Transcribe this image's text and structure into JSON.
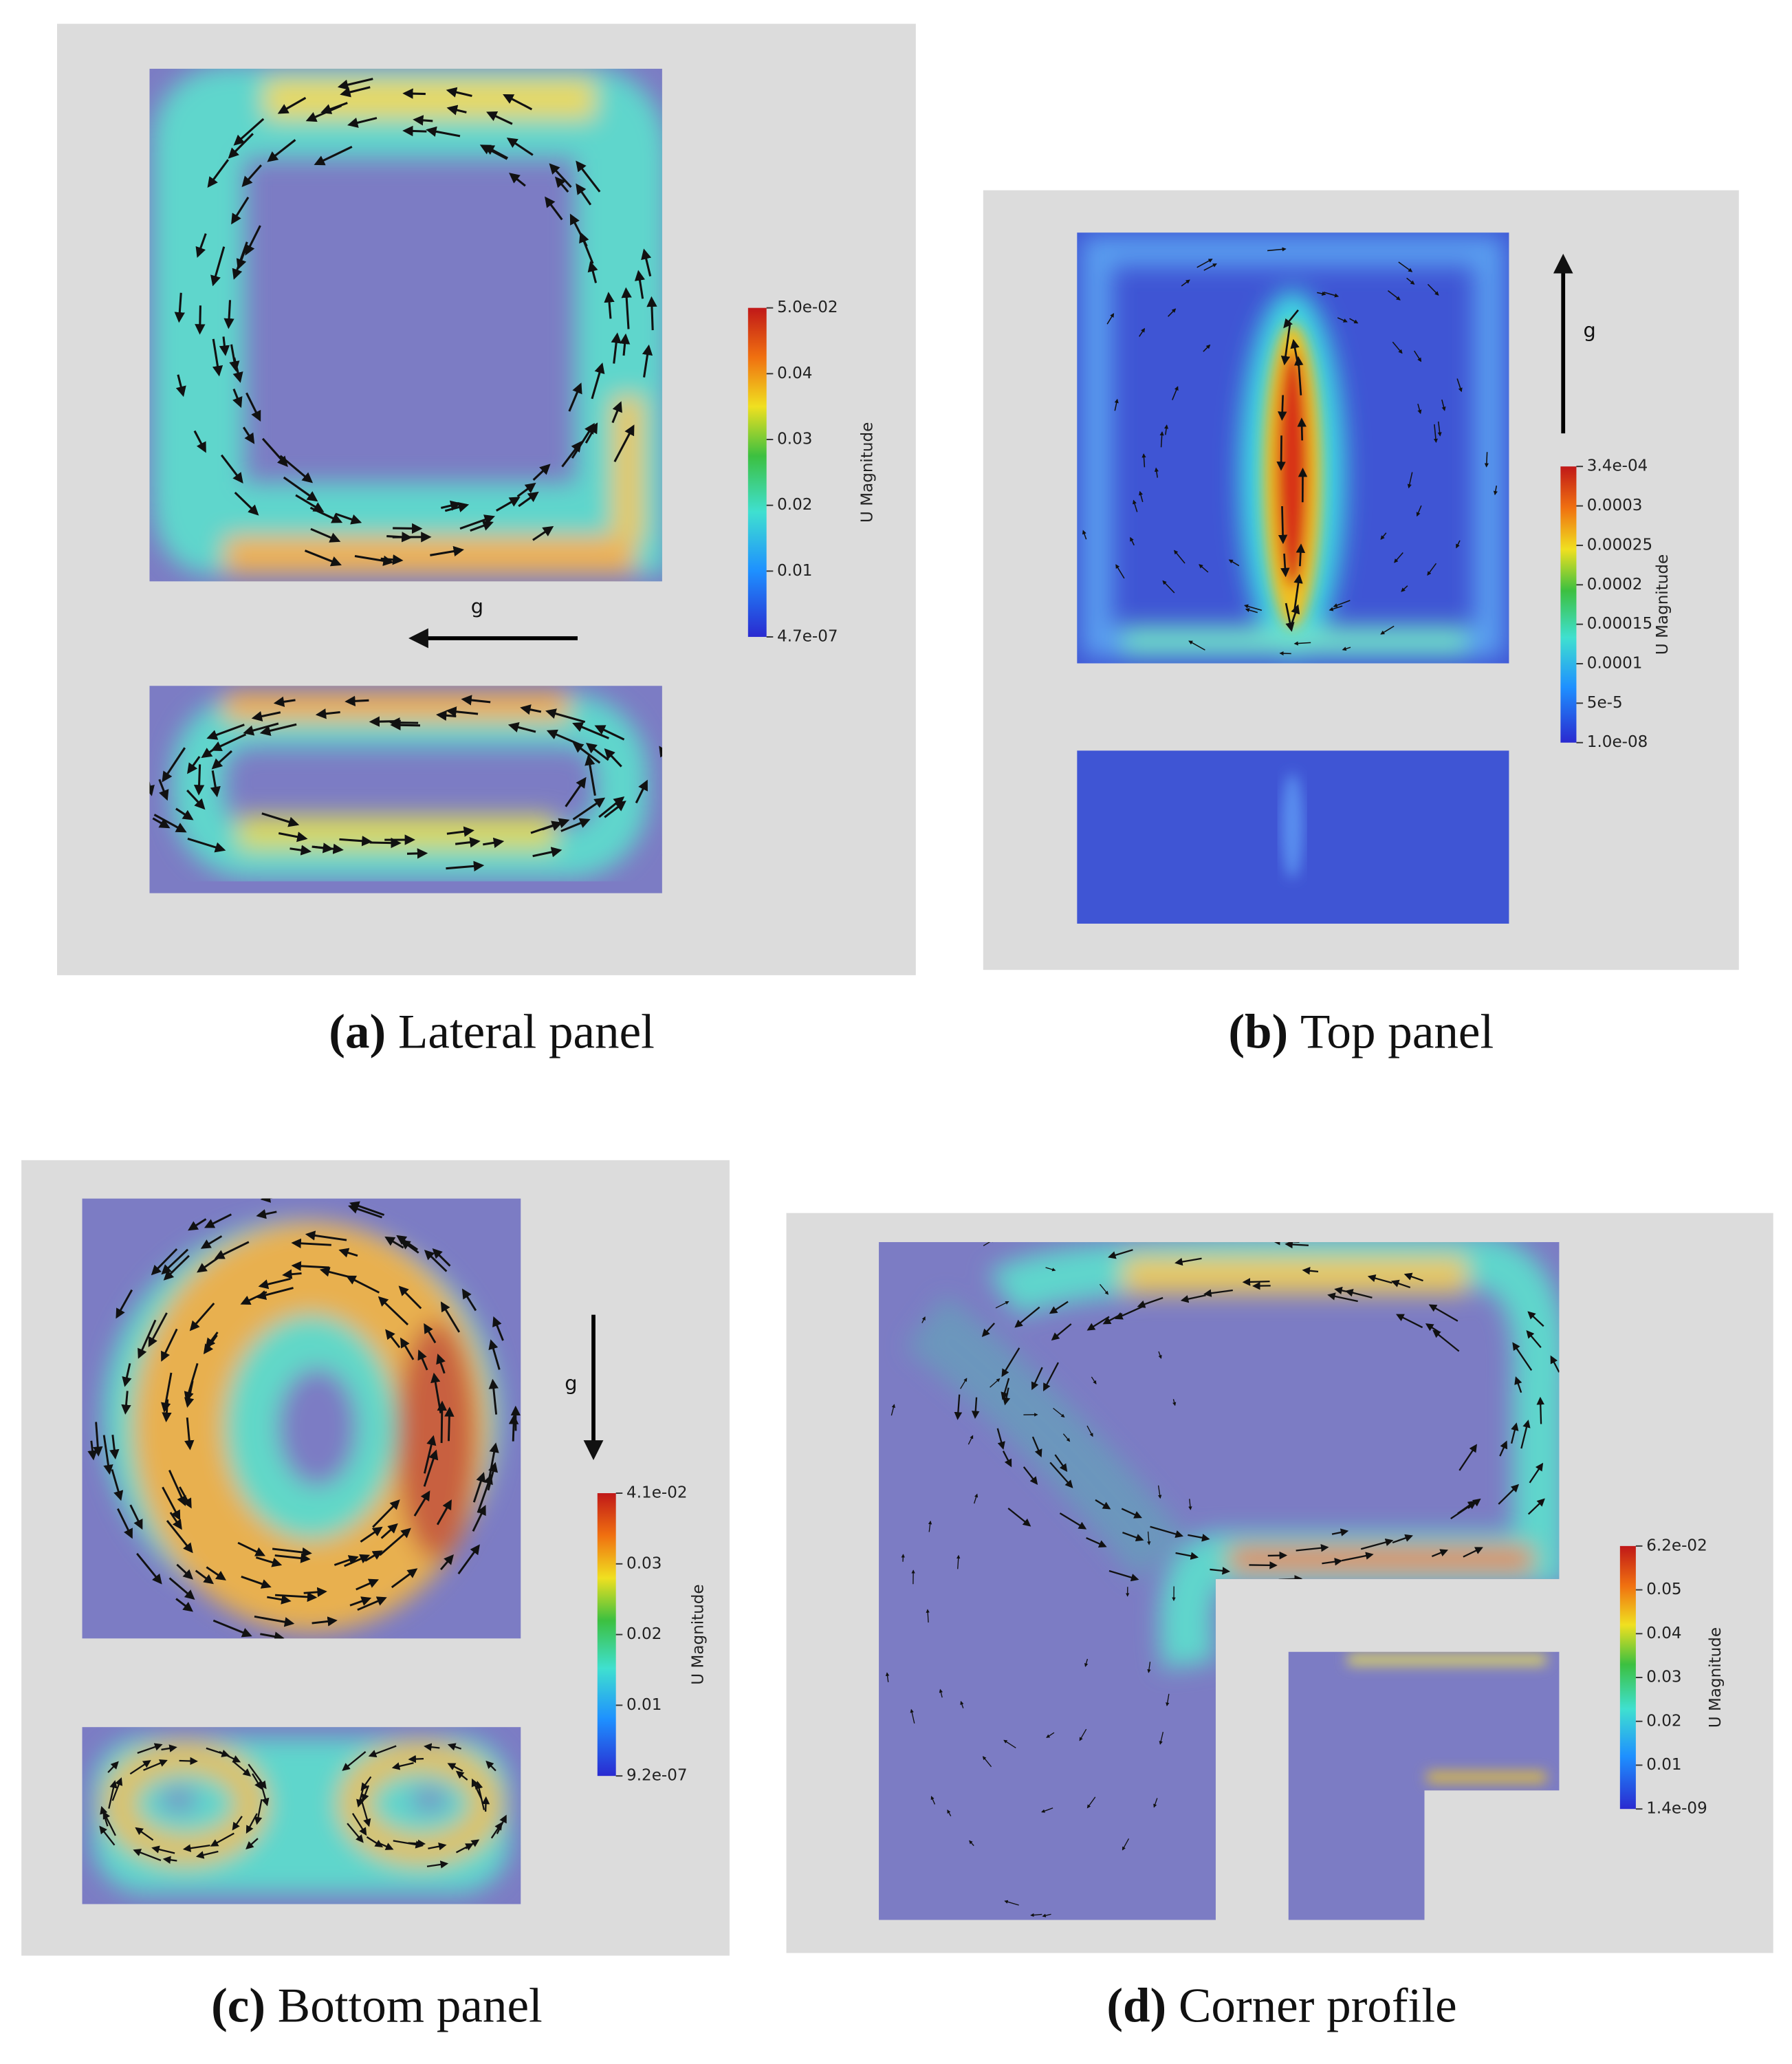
{
  "panels": [
    {
      "label": "(a)",
      "caption": "Lateral panel",
      "gravity": "g",
      "colorbar_title": "U Magnitude",
      "colorbar_ticks": [
        "5.0e-02",
        "0.04",
        "0.03",
        "0.02",
        "0.01",
        "4.7e-07"
      ]
    },
    {
      "label": "(b)",
      "caption": "Top panel",
      "gravity": "g",
      "colorbar_title": "U Magnitude",
      "colorbar_ticks": [
        "3.4e-04",
        "0.0003",
        "0.00025",
        "0.0002",
        "0.00015",
        "0.0001",
        "5e-5",
        "1.0e-08"
      ]
    },
    {
      "label": "(c)",
      "caption": "Bottom panel",
      "gravity": "g",
      "colorbar_title": "U Magnitude",
      "colorbar_ticks": [
        "4.1e-02",
        "0.03",
        "0.02",
        "0.01",
        "9.2e-07"
      ]
    },
    {
      "label": "(d)",
      "caption": "Corner profile",
      "colorbar_title": "U Magnitude",
      "colorbar_ticks": [
        "6.2e-02",
        "0.05",
        "0.04",
        "0.03",
        "0.02",
        "0.01",
        "1.4e-09"
      ]
    }
  ]
}
